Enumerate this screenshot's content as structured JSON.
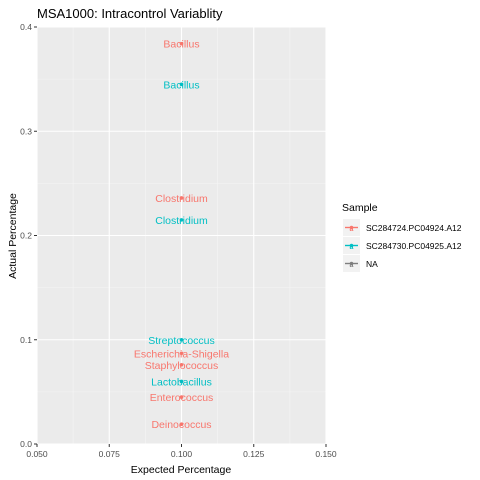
{
  "chart_data": {
    "type": "scatter",
    "title": "MSA1000: Intracontrol Variablity",
    "xlabel": "Expected Percentage",
    "ylabel": "Actual Percentage",
    "xlim": [
      0.05,
      0.15
    ],
    "ylim": [
      0,
      0.4
    ],
    "x_ticks": [
      {
        "value": 0.05,
        "label": "0.050"
      },
      {
        "value": 0.075,
        "label": "0.075"
      },
      {
        "value": 0.1,
        "label": "0.100"
      },
      {
        "value": 0.125,
        "label": "0.125"
      },
      {
        "value": 0.15,
        "label": "0.150"
      }
    ],
    "y_ticks": [
      {
        "value": 0,
        "label": "0.0"
      },
      {
        "value": 0.1,
        "label": "0.1"
      },
      {
        "value": 0.2,
        "label": "0.2"
      },
      {
        "value": 0.3,
        "label": "0.3"
      },
      {
        "value": 0.4,
        "label": "0.4"
      }
    ],
    "grid": true,
    "legend": {
      "title": "Sample",
      "position": "right",
      "entries": [
        {
          "name": "SC284724.PC04924.A12",
          "color": "#F8766D"
        },
        {
          "name": "SC284730.PC04925.A12",
          "color": "#00BFC4"
        },
        {
          "name": "NA",
          "color": "#7F7F7F"
        }
      ]
    },
    "series": [
      {
        "name": "SC284724.PC04924.A12",
        "color": "#F8766D",
        "points": [
          {
            "x": 0.1,
            "y": 0.384,
            "label": "Bacillus"
          },
          {
            "x": 0.1,
            "y": 0.236,
            "label": "Clostridium"
          },
          {
            "x": 0.1,
            "y": 0.087,
            "label": "Escherichia-Shigella"
          },
          {
            "x": 0.1,
            "y": 0.076,
            "label": "Staphylococcus"
          },
          {
            "x": 0.1,
            "y": 0.045,
            "label": "Enterococcus"
          },
          {
            "x": 0.1,
            "y": 0.019,
            "label": "Deinococcus"
          }
        ]
      },
      {
        "name": "SC284730.PC04925.A12",
        "color": "#00BFC4",
        "points": [
          {
            "x": 0.1,
            "y": 0.345,
            "label": "Bacillus"
          },
          {
            "x": 0.1,
            "y": 0.215,
            "label": "Clostridium"
          },
          {
            "x": 0.1,
            "y": 0.1,
            "label": "Streptococcus"
          },
          {
            "x": 0.1,
            "y": 0.06,
            "label": "Lactobacillus"
          }
        ]
      }
    ]
  },
  "colors": {
    "panel_background": "#EBEBEB",
    "grid_major": "#FFFFFF",
    "series_1": "#F8766D",
    "series_2": "#00BFC4",
    "na": "#7F7F7F"
  }
}
